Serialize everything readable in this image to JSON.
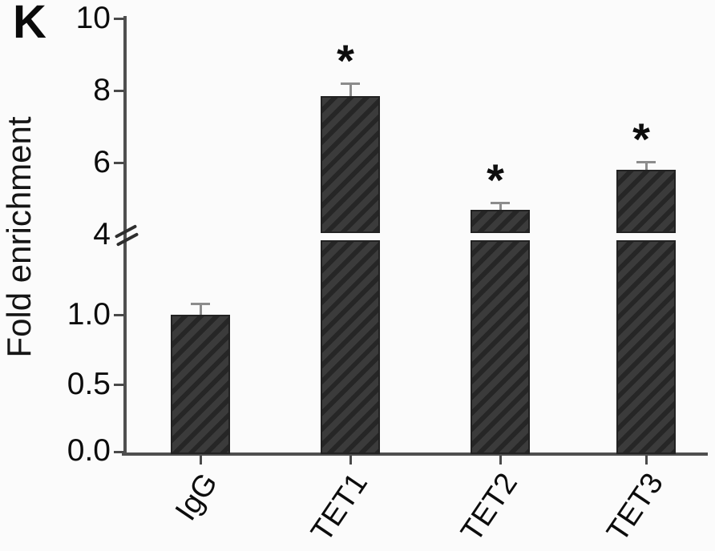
{
  "panel": {
    "label": "K"
  },
  "chart_data": {
    "type": "bar",
    "title": "",
    "xlabel": "",
    "ylabel": "Fold enrichment",
    "categories": [
      "IgG",
      "TET1",
      "TET2",
      "TET3"
    ],
    "values": [
      1.0,
      7.85,
      4.7,
      5.8
    ],
    "errors": [
      0.08,
      0.35,
      0.2,
      0.22
    ],
    "significance": [
      "",
      "*",
      "*",
      "*"
    ],
    "axis_break": {
      "lower_range": [
        0.0,
        1.5
      ],
      "upper_range": [
        4,
        10
      ],
      "lower_tick_labels": [
        "0.0",
        "0.5",
        "1.0"
      ],
      "lower_tick_values": [
        0,
        0.5,
        1.0
      ],
      "upper_tick_labels": [
        "4",
        "6",
        "8",
        "10"
      ],
      "upper_tick_values": [
        4,
        6,
        8,
        10
      ]
    },
    "grid": false,
    "legend": false,
    "style": {
      "bar_fill": "#3b3b3b",
      "bar_hatch": "#262626",
      "hatch_pattern": "diagonal-forward",
      "error_bar_color": "#8c8c8c",
      "axis_color": "#4f4f4f",
      "text_color": "#0c0c0c",
      "background": "#fbfbfb"
    }
  }
}
